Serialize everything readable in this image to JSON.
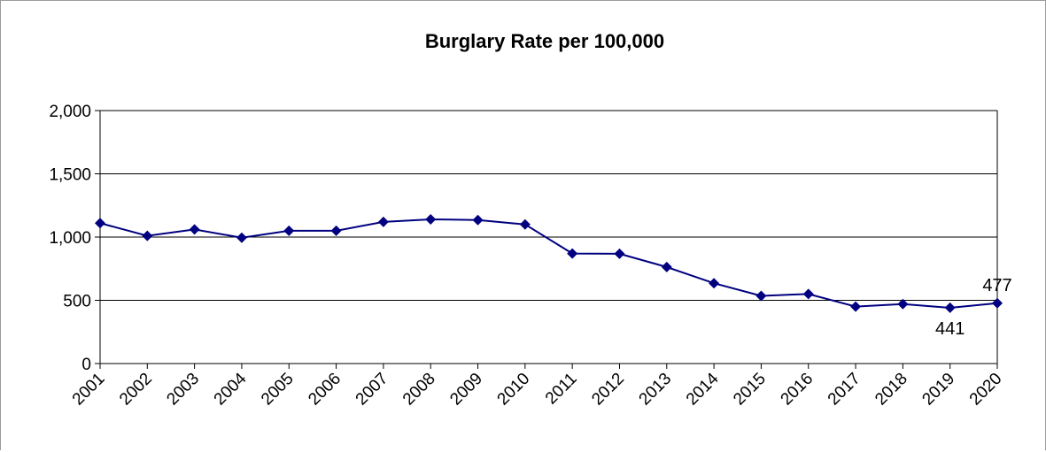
{
  "chart_data": {
    "type": "line",
    "title": "Burglary Rate per 100,000",
    "xlabel": "",
    "ylabel": "",
    "categories": [
      "2001",
      "2002",
      "2003",
      "2004",
      "2005",
      "2006",
      "2007",
      "2008",
      "2009",
      "2010",
      "2011",
      "2012",
      "2013",
      "2014",
      "2015",
      "2016",
      "2017",
      "2018",
      "2019",
      "2020"
    ],
    "series": [
      {
        "values": [
          1110,
          1010,
          1060,
          995,
          1050,
          1050,
          1120,
          1140,
          1135,
          1100,
          870,
          868,
          763,
          635,
          535,
          550,
          450,
          470,
          441,
          477
        ]
      }
    ],
    "ylim": [
      0,
      2000
    ],
    "yticks": [
      0,
      500,
      1000,
      1500,
      2000
    ],
    "ytick_labels": [
      "0",
      "500",
      "1,000",
      "1,500",
      "2,000"
    ],
    "grid": "horizontal",
    "legend": "none",
    "annotations": [
      {
        "category": "2019",
        "text": "441",
        "placement": "below"
      },
      {
        "category": "2020",
        "text": "477",
        "placement": "above"
      }
    ],
    "colors": {
      "line": "#000080",
      "marker": "#000080",
      "grid": "#000000",
      "axis": "#000000"
    }
  }
}
